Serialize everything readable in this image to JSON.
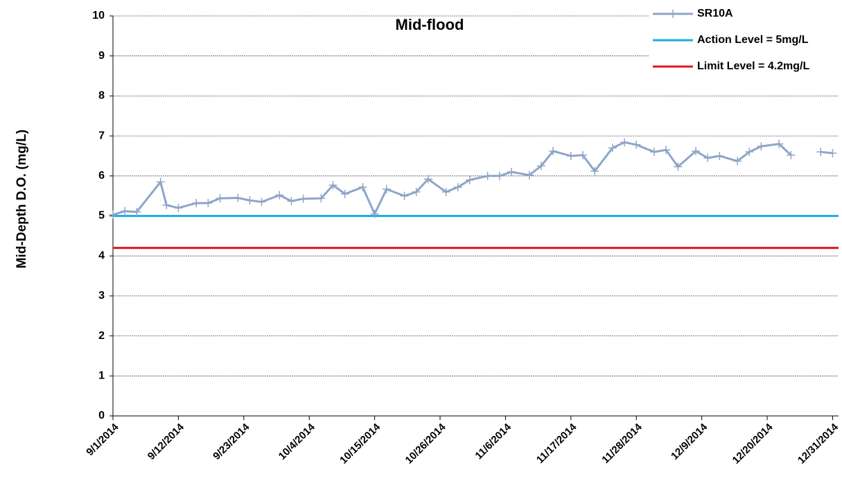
{
  "chart_data": {
    "type": "line",
    "title": "Mid-flood",
    "y_label": "Mid-Depth D.O. (mg/L)",
    "x": [
      "2014-09-01",
      "2014-09-03",
      "2014-09-05",
      "2014-09-09",
      "2014-09-10",
      "2014-09-12",
      "2014-09-15",
      "2014-09-17",
      "2014-09-19",
      "2014-09-22",
      "2014-09-24",
      "2014-09-26",
      "2014-09-29",
      "2014-10-01",
      "2014-10-03",
      "2014-10-06",
      "2014-10-08",
      "2014-10-10",
      "2014-10-13",
      "2014-10-15",
      "2014-10-17",
      "2014-10-20",
      "2014-10-22",
      "2014-10-24",
      "2014-10-27",
      "2014-10-29",
      "2014-10-31",
      "2014-11-03",
      "2014-11-05",
      "2014-11-07",
      "2014-11-10",
      "2014-11-12",
      "2014-11-14",
      "2014-11-17",
      "2014-11-19",
      "2014-11-21",
      "2014-11-24",
      "2014-11-26",
      "2014-11-28",
      "2014-12-01",
      "2014-12-03",
      "2014-12-05",
      "2014-12-08",
      "2014-12-10",
      "2014-12-12",
      "2014-12-15",
      "2014-12-17",
      "2014-12-19",
      "2014-12-22",
      "2014-12-24",
      "2014-12-26",
      "2014-12-29",
      "2014-12-31"
    ],
    "series": [
      {
        "name": "SR10A",
        "color": "#8ea5c9",
        "values": [
          5.03,
          5.12,
          5.1,
          5.85,
          5.27,
          5.2,
          5.32,
          5.32,
          5.44,
          5.45,
          5.39,
          5.35,
          5.52,
          5.37,
          5.43,
          5.44,
          5.77,
          5.55,
          5.72,
          5.05,
          5.67,
          5.5,
          5.6,
          5.92,
          5.6,
          5.72,
          5.9,
          6.0,
          6.0,
          6.1,
          6.02,
          6.25,
          6.62,
          6.5,
          6.52,
          6.12,
          6.7,
          6.84,
          6.78,
          6.6,
          6.65,
          6.23,
          6.62,
          6.45,
          6.5,
          6.37,
          6.6,
          6.74,
          6.8,
          6.52,
          null,
          6.6,
          6.57
        ]
      }
    ],
    "reference_lines": [
      {
        "name": "Action Level = 5mg/L",
        "value": 5,
        "color": "#1aaee6"
      },
      {
        "name": "Limit Level = 4.2mg/L",
        "value": 4.2,
        "color": "#e3141b"
      }
    ],
    "xlim": [
      "2014-09-01",
      "2015-01-01"
    ],
    "xticks": [
      {
        "value": "2014-09-01",
        "label": "9/1/2014"
      },
      {
        "value": "2014-09-12",
        "label": "9/12/2014"
      },
      {
        "value": "2014-09-23",
        "label": "9/23/2014"
      },
      {
        "value": "2014-10-04",
        "label": "10/4/2014"
      },
      {
        "value": "2014-10-15",
        "label": "10/15/2014"
      },
      {
        "value": "2014-10-26",
        "label": "10/26/2014"
      },
      {
        "value": "2014-11-06",
        "label": "11/6/2014"
      },
      {
        "value": "2014-11-17",
        "label": "11/17/2014"
      },
      {
        "value": "2014-11-28",
        "label": "11/28/2014"
      },
      {
        "value": "2014-12-09",
        "label": "12/9/2014"
      },
      {
        "value": "2014-12-20",
        "label": "12/20/2014"
      },
      {
        "value": "2014-12-31",
        "label": "12/31/2014"
      }
    ],
    "ylim": [
      0,
      10
    ],
    "yticks": [
      0,
      1,
      2,
      3,
      4,
      5,
      6,
      7,
      8,
      9,
      10
    ],
    "grid": true,
    "legend": "top-right"
  }
}
